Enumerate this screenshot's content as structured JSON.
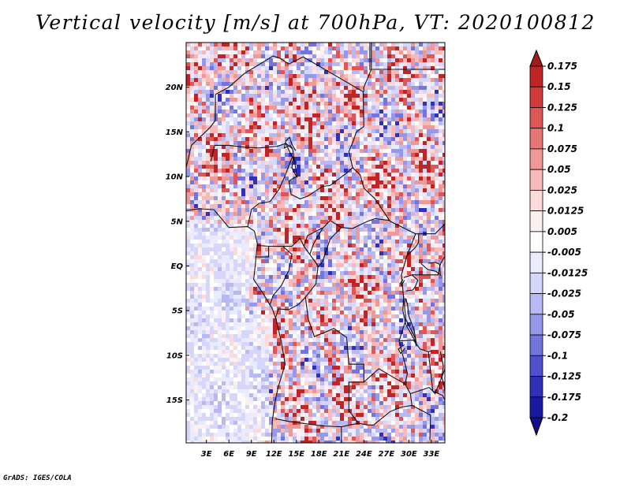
{
  "chart_data": {
    "type": "heatmap",
    "title": "Vertical velocity [m/s] at 700hPa, VT: 2020100812",
    "variable": "Vertical velocity",
    "units": "m/s",
    "level": "700hPa",
    "valid_time": "2020100812",
    "x_tick_labels": [
      "3E",
      "6E",
      "9E",
      "12E",
      "15E",
      "18E",
      "21E",
      "24E",
      "27E",
      "30E",
      "33E"
    ],
    "x_ticks_deg": [
      3,
      6,
      9,
      12,
      15,
      18,
      21,
      24,
      27,
      30,
      33
    ],
    "y_tick_labels": [
      "20N",
      "15N",
      "10N",
      "5N",
      "EQ",
      "5S",
      "10S",
      "15S"
    ],
    "y_ticks_deg": [
      20,
      15,
      10,
      5,
      0,
      -5,
      -10,
      -15
    ],
    "xlim": [
      0.3,
      34.8
    ],
    "ylim": [
      -19.8,
      25.0
    ],
    "colorbar": {
      "labels": [
        "0.175",
        "0.15",
        "0.125",
        "0.1",
        "0.075",
        "0.05",
        "0.025",
        "0.0125",
        "0.005",
        "-0.005",
        "-0.0125",
        "-0.025",
        "-0.05",
        "-0.075",
        "-0.1",
        "-0.125",
        "-0.175",
        "-0.2"
      ],
      "colors": [
        "#a31a1a",
        "#c02424",
        "#d23b3b",
        "#df5656",
        "#e87676",
        "#ef9898",
        "#f6baba",
        "#fadada",
        "#fdf0f0",
        "#ffffff",
        "#ebebff",
        "#d6d6fa",
        "#b8b8f3",
        "#9898ea",
        "#7474dd",
        "#5050cc",
        "#3030b8",
        "#1a1aa0",
        "#101088"
      ]
    }
  },
  "footer": {
    "credit": "GrADS: IGES/COLA"
  }
}
